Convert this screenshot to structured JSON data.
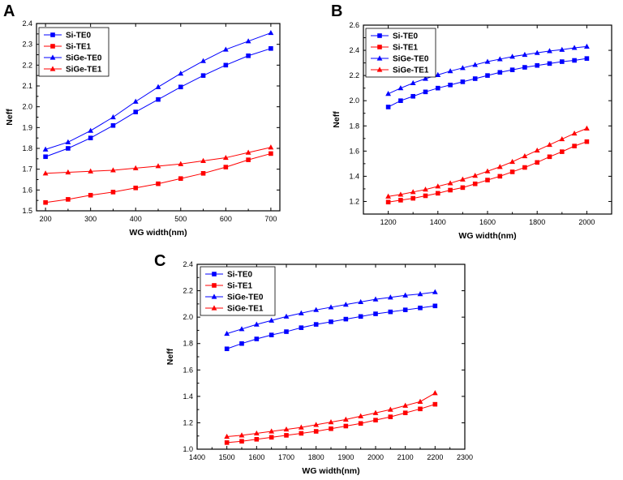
{
  "figure": {
    "colors": {
      "te0": "#0000FF",
      "te1": "#FF0000",
      "axis": "#000000"
    }
  },
  "chart_data": [
    {
      "panel": "A",
      "type": "line",
      "xlabel": "WG width(nm)",
      "ylabel": "Neff",
      "xlim": [
        180,
        720
      ],
      "ylim": [
        1.5,
        2.4
      ],
      "xticks": [
        200,
        300,
        400,
        500,
        600,
        700
      ],
      "yticks": [
        1.5,
        1.6,
        1.7,
        1.8,
        1.9,
        2.0,
        2.1,
        2.2,
        2.3,
        2.4
      ],
      "xtick_labels": [
        "200",
        "300",
        "400",
        "500",
        "600",
        "700"
      ],
      "ytick_labels": [
        "1.5",
        "1.6",
        "1.7",
        "1.8",
        "1.9",
        "2.0",
        "2.1",
        "2.2",
        "2.3",
        "2.4"
      ],
      "legend_position": "top-left",
      "x": [
        200,
        250,
        300,
        350,
        400,
        450,
        500,
        550,
        600,
        650,
        700
      ],
      "series": [
        {
          "name": "Si-TE0",
          "marker": "square",
          "color": "#0000FF",
          "values": [
            1.76,
            1.8,
            1.85,
            1.91,
            1.975,
            2.035,
            2.095,
            2.15,
            2.2,
            2.245,
            2.28
          ]
        },
        {
          "name": "Si-TE1",
          "marker": "square",
          "color": "#FF0000",
          "values": [
            1.54,
            1.555,
            1.575,
            1.59,
            1.61,
            1.63,
            1.655,
            1.68,
            1.71,
            1.745,
            1.775
          ]
        },
        {
          "name": "SiGe-TE0",
          "marker": "triangle",
          "color": "#0000FF",
          "values": [
            1.795,
            1.83,
            1.885,
            1.95,
            2.025,
            2.095,
            2.16,
            2.22,
            2.275,
            2.315,
            2.355
          ]
        },
        {
          "name": "SiGe-TE1",
          "marker": "triangle",
          "color": "#FF0000",
          "values": [
            1.68,
            1.685,
            1.69,
            1.695,
            1.705,
            1.715,
            1.725,
            1.74,
            1.755,
            1.78,
            1.805
          ]
        }
      ]
    },
    {
      "panel": "B",
      "type": "line",
      "xlabel": "WG width(nm)",
      "ylabel": "Neff",
      "xlim": [
        1100,
        2100
      ],
      "ylim": [
        1.1,
        2.6
      ],
      "xticks": [
        1200,
        1400,
        1600,
        1800,
        2000
      ],
      "yticks": [
        1.2,
        1.4,
        1.6,
        1.8,
        2.0,
        2.2,
        2.4,
        2.6
      ],
      "xtick_labels": [
        "1200",
        "1400",
        "1600",
        "1800",
        "2000"
      ],
      "ytick_labels": [
        "1.2",
        "1.4",
        "1.6",
        "1.8",
        "2.0",
        "2.2",
        "2.4",
        "2.6"
      ],
      "legend_position": "top-left",
      "x": [
        1200,
        1250,
        1300,
        1350,
        1400,
        1450,
        1500,
        1550,
        1600,
        1650,
        1700,
        1750,
        1800,
        1850,
        1900,
        1950,
        2000
      ],
      "series": [
        {
          "name": "Si-TE0",
          "marker": "square",
          "color": "#0000FF",
          "values": [
            1.95,
            2.0,
            2.035,
            2.07,
            2.1,
            2.125,
            2.15,
            2.175,
            2.2,
            2.225,
            2.245,
            2.265,
            2.28,
            2.295,
            2.31,
            2.32,
            2.335
          ]
        },
        {
          "name": "Si-TE1",
          "marker": "square",
          "color": "#FF0000",
          "values": [
            1.195,
            1.21,
            1.225,
            1.245,
            1.265,
            1.29,
            1.31,
            1.34,
            1.37,
            1.4,
            1.435,
            1.47,
            1.51,
            1.555,
            1.595,
            1.64,
            1.675
          ]
        },
        {
          "name": "SiGe-TE0",
          "marker": "triangle",
          "color": "#0000FF",
          "values": [
            2.055,
            2.1,
            2.14,
            2.175,
            2.205,
            2.235,
            2.26,
            2.285,
            2.31,
            2.33,
            2.35,
            2.365,
            2.38,
            2.395,
            2.405,
            2.42,
            2.43
          ]
        },
        {
          "name": "SiGe-TE1",
          "marker": "triangle",
          "color": "#FF0000",
          "values": [
            1.24,
            1.255,
            1.275,
            1.295,
            1.32,
            1.345,
            1.375,
            1.405,
            1.44,
            1.475,
            1.515,
            1.56,
            1.605,
            1.65,
            1.695,
            1.74,
            1.78
          ]
        }
      ]
    },
    {
      "panel": "C",
      "type": "line",
      "xlabel": "WG width(nm)",
      "ylabel": "Neff",
      "xlim": [
        1400,
        2300
      ],
      "ylim": [
        1.0,
        2.4
      ],
      "xticks": [
        1400,
        1500,
        1600,
        1700,
        1800,
        1900,
        2000,
        2100,
        2200,
        2300
      ],
      "yticks": [
        1.0,
        1.2,
        1.4,
        1.6,
        1.8,
        2.0,
        2.2,
        2.4
      ],
      "xtick_labels": [
        "1400",
        "1500",
        "1600",
        "1700",
        "1800",
        "1900",
        "2000",
        "2100",
        "2200",
        "2300"
      ],
      "ytick_labels": [
        "1.0",
        "1.2",
        "1.4",
        "1.6",
        "1.8",
        "2.0",
        "2.2",
        "2.4"
      ],
      "legend_position": "top-left",
      "x": [
        1500,
        1550,
        1600,
        1650,
        1700,
        1750,
        1800,
        1850,
        1900,
        1950,
        2000,
        2050,
        2100,
        2150,
        2200
      ],
      "series": [
        {
          "name": "Si-TE0",
          "marker": "square",
          "color": "#0000FF",
          "values": [
            1.76,
            1.8,
            1.835,
            1.865,
            1.89,
            1.92,
            1.945,
            1.965,
            1.985,
            2.005,
            2.025,
            2.04,
            2.055,
            2.07,
            2.085
          ]
        },
        {
          "name": "Si-TE1",
          "marker": "square",
          "color": "#FF0000",
          "values": [
            1.05,
            1.06,
            1.075,
            1.09,
            1.105,
            1.12,
            1.135,
            1.155,
            1.175,
            1.195,
            1.22,
            1.245,
            1.275,
            1.305,
            1.34
          ]
        },
        {
          "name": "SiGe-TE0",
          "marker": "triangle",
          "color": "#0000FF",
          "values": [
            1.875,
            1.91,
            1.945,
            1.975,
            2.005,
            2.03,
            2.055,
            2.075,
            2.095,
            2.115,
            2.135,
            2.15,
            2.165,
            2.175,
            2.19
          ]
        },
        {
          "name": "SiGe-TE1",
          "marker": "triangle",
          "color": "#FF0000",
          "values": [
            1.095,
            1.105,
            1.12,
            1.135,
            1.15,
            1.165,
            1.185,
            1.205,
            1.225,
            1.25,
            1.275,
            1.3,
            1.33,
            1.36,
            1.425
          ]
        }
      ]
    }
  ]
}
